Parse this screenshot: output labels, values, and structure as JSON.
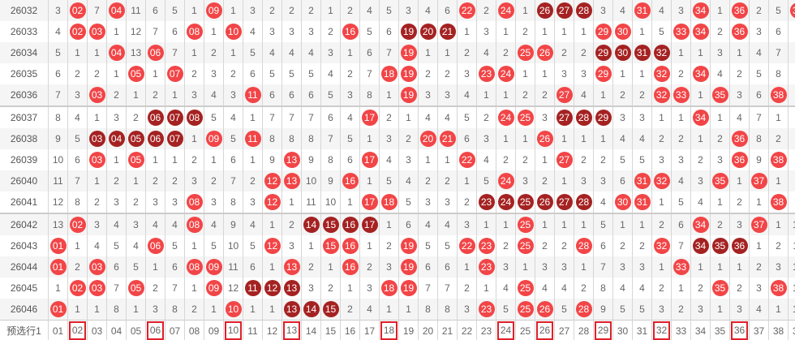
{
  "colors": {
    "hit": "#f24547",
    "consecutive": "#a52222",
    "pick_border": "#e0202a"
  },
  "columns": [
    "01",
    "02",
    "03",
    "04",
    "05",
    "06",
    "07",
    "08",
    "09",
    "10",
    "11",
    "12",
    "13",
    "14",
    "15",
    "16",
    "17",
    "18",
    "19",
    "20",
    "21",
    "22",
    "23",
    "24",
    "25",
    "26",
    "27",
    "28",
    "29",
    "30",
    "31",
    "32",
    "33",
    "34",
    "35",
    "36",
    "37",
    "38",
    "39",
    "40"
  ],
  "rows": [
    {
      "issue": "26032",
      "cells": [
        "3",
        "02",
        "7",
        "04",
        "11",
        "6",
        "5",
        "1",
        "09",
        "1",
        "3",
        "2",
        "2",
        "2",
        "1",
        "2",
        "4",
        "5",
        "3",
        "4",
        "6",
        "22",
        "2",
        "24",
        "1",
        "26",
        "27",
        "28",
        "3",
        "4",
        "31",
        "4",
        "3",
        "34",
        "1",
        "36",
        "2",
        "5",
        "39",
        "7"
      ],
      "hits": [
        2,
        4,
        9,
        22,
        24,
        26,
        27,
        28,
        31,
        34,
        36,
        39
      ],
      "consecutive": [
        26,
        27,
        28
      ]
    },
    {
      "issue": "26033",
      "cells": [
        "4",
        "02",
        "03",
        "1",
        "12",
        "7",
        "6",
        "08",
        "1",
        "10",
        "4",
        "3",
        "3",
        "3",
        "2",
        "16",
        "5",
        "6",
        "19",
        "20",
        "21",
        "1",
        "3",
        "1",
        "2",
        "1",
        "1",
        "1",
        "29",
        "30",
        "1",
        "5",
        "33",
        "34",
        "2",
        "36",
        "3",
        "6",
        "1",
        "8"
      ],
      "hits": [
        2,
        3,
        8,
        10,
        16,
        19,
        20,
        21,
        29,
        30,
        33,
        34,
        36
      ],
      "consecutive": [
        19,
        20,
        21
      ]
    },
    {
      "issue": "26034",
      "cells": [
        "5",
        "1",
        "1",
        "04",
        "13",
        "06",
        "7",
        "1",
        "2",
        "1",
        "5",
        "4",
        "4",
        "4",
        "3",
        "1",
        "6",
        "7",
        "19",
        "1",
        "1",
        "2",
        "4",
        "2",
        "25",
        "26",
        "2",
        "2",
        "29",
        "30",
        "31",
        "32",
        "1",
        "1",
        "3",
        "1",
        "4",
        "7",
        "2",
        "9"
      ],
      "hits": [
        4,
        6,
        19,
        25,
        26,
        29,
        30,
        31,
        32
      ],
      "consecutive": [
        29,
        30,
        31,
        32
      ]
    },
    {
      "issue": "26035",
      "cells": [
        "6",
        "2",
        "2",
        "1",
        "05",
        "1",
        "07",
        "2",
        "3",
        "2",
        "6",
        "5",
        "5",
        "5",
        "4",
        "2",
        "7",
        "18",
        "19",
        "2",
        "2",
        "3",
        "23",
        "24",
        "1",
        "1",
        "3",
        "3",
        "29",
        "1",
        "1",
        "32",
        "2",
        "34",
        "4",
        "2",
        "5",
        "8",
        "3",
        "10"
      ],
      "hits": [
        5,
        7,
        18,
        19,
        23,
        24,
        29,
        32,
        34
      ],
      "consecutive": []
    },
    {
      "issue": "26036",
      "cells": [
        "7",
        "3",
        "03",
        "2",
        "1",
        "2",
        "1",
        "3",
        "4",
        "3",
        "11",
        "6",
        "6",
        "6",
        "5",
        "3",
        "8",
        "1",
        "19",
        "3",
        "3",
        "4",
        "1",
        "1",
        "2",
        "2",
        "27",
        "4",
        "1",
        "2",
        "2",
        "32",
        "33",
        "1",
        "35",
        "3",
        "6",
        "38",
        "4",
        "11"
      ],
      "hits": [
        3,
        11,
        19,
        27,
        32,
        33,
        35,
        38
      ],
      "consecutive": []
    },
    {
      "issue": "26037",
      "cells": [
        "8",
        "4",
        "1",
        "3",
        "2",
        "06",
        "07",
        "08",
        "5",
        "4",
        "1",
        "7",
        "7",
        "7",
        "6",
        "4",
        "17",
        "2",
        "1",
        "4",
        "4",
        "5",
        "2",
        "24",
        "25",
        "3",
        "27",
        "28",
        "29",
        "3",
        "3",
        "1",
        "1",
        "34",
        "1",
        "4",
        "7",
        "1",
        "5",
        "40"
      ],
      "hits": [
        6,
        7,
        8,
        17,
        24,
        25,
        27,
        28,
        29,
        34,
        40
      ],
      "consecutive": [
        6,
        7,
        8,
        27,
        28,
        29
      ]
    },
    {
      "issue": "26038",
      "cells": [
        "9",
        "5",
        "03",
        "04",
        "05",
        "06",
        "07",
        "1",
        "09",
        "5",
        "11",
        "8",
        "8",
        "8",
        "7",
        "5",
        "1",
        "3",
        "2",
        "20",
        "21",
        "6",
        "3",
        "1",
        "1",
        "26",
        "1",
        "1",
        "1",
        "4",
        "4",
        "2",
        "2",
        "1",
        "2",
        "36",
        "8",
        "2",
        "6",
        "1"
      ],
      "hits": [
        3,
        4,
        5,
        6,
        7,
        9,
        11,
        20,
        21,
        26,
        36
      ],
      "consecutive": [
        3,
        4,
        5,
        6,
        7
      ]
    },
    {
      "issue": "26039",
      "cells": [
        "10",
        "6",
        "03",
        "1",
        "05",
        "1",
        "1",
        "2",
        "1",
        "6",
        "1",
        "9",
        "13",
        "9",
        "8",
        "6",
        "17",
        "4",
        "3",
        "1",
        "1",
        "22",
        "4",
        "2",
        "2",
        "1",
        "27",
        "2",
        "2",
        "5",
        "5",
        "3",
        "3",
        "2",
        "3",
        "36",
        "9",
        "38",
        "7",
        "40"
      ],
      "hits": [
        3,
        5,
        13,
        17,
        22,
        27,
        36,
        38,
        40
      ],
      "consecutive": []
    },
    {
      "issue": "26040",
      "cells": [
        "11",
        "7",
        "1",
        "2",
        "1",
        "2",
        "2",
        "3",
        "2",
        "7",
        "2",
        "12",
        "13",
        "10",
        "9",
        "16",
        "1",
        "5",
        "4",
        "2",
        "2",
        "1",
        "5",
        "24",
        "3",
        "2",
        "1",
        "3",
        "3",
        "6",
        "31",
        "32",
        "4",
        "3",
        "35",
        "1",
        "37",
        "1",
        "8",
        "1"
      ],
      "hits": [
        12,
        13,
        16,
        24,
        31,
        32,
        35,
        37
      ],
      "consecutive": []
    },
    {
      "issue": "26041",
      "cells": [
        "12",
        "8",
        "2",
        "3",
        "2",
        "3",
        "3",
        "08",
        "3",
        "8",
        "3",
        "12",
        "1",
        "11",
        "10",
        "1",
        "17",
        "18",
        "5",
        "3",
        "3",
        "2",
        "23",
        "24",
        "25",
        "26",
        "27",
        "28",
        "4",
        "30",
        "31",
        "1",
        "5",
        "4",
        "1",
        "2",
        "1",
        "38",
        "9",
        "2"
      ],
      "hits": [
        8,
        12,
        17,
        18,
        23,
        24,
        25,
        26,
        27,
        28,
        30,
        31,
        38
      ],
      "consecutive": [
        23,
        24,
        25,
        26,
        27,
        28
      ]
    },
    {
      "issue": "26042",
      "cells": [
        "13",
        "02",
        "3",
        "4",
        "3",
        "4",
        "4",
        "08",
        "4",
        "9",
        "4",
        "1",
        "2",
        "14",
        "15",
        "16",
        "17",
        "1",
        "6",
        "4",
        "4",
        "3",
        "1",
        "1",
        "25",
        "1",
        "1",
        "1",
        "5",
        "1",
        "1",
        "2",
        "6",
        "34",
        "2",
        "3",
        "37",
        "1",
        "10",
        "3"
      ],
      "hits": [
        2,
        8,
        14,
        15,
        16,
        17,
        25,
        34,
        37
      ],
      "consecutive": [
        14,
        15,
        16,
        17
      ]
    },
    {
      "issue": "26043",
      "cells": [
        "01",
        "1",
        "4",
        "5",
        "4",
        "06",
        "5",
        "1",
        "5",
        "10",
        "5",
        "12",
        "3",
        "1",
        "15",
        "16",
        "1",
        "2",
        "19",
        "5",
        "5",
        "22",
        "23",
        "2",
        "25",
        "2",
        "2",
        "28",
        "6",
        "2",
        "2",
        "32",
        "7",
        "34",
        "35",
        "36",
        "1",
        "2",
        "11",
        "4"
      ],
      "hits": [
        1,
        6,
        12,
        15,
        16,
        19,
        22,
        23,
        25,
        28,
        32,
        34,
        35,
        36
      ],
      "consecutive": [
        34,
        35,
        36
      ]
    },
    {
      "issue": "26044",
      "cells": [
        "01",
        "2",
        "03",
        "6",
        "5",
        "1",
        "6",
        "08",
        "09",
        "11",
        "6",
        "1",
        "13",
        "2",
        "1",
        "16",
        "2",
        "3",
        "19",
        "6",
        "6",
        "1",
        "23",
        "3",
        "1",
        "3",
        "3",
        "1",
        "7",
        "3",
        "3",
        "1",
        "33",
        "1",
        "1",
        "1",
        "2",
        "3",
        "12",
        "5"
      ],
      "hits": [
        1,
        3,
        8,
        9,
        13,
        16,
        19,
        23,
        33
      ],
      "consecutive": []
    },
    {
      "issue": "26045",
      "cells": [
        "1",
        "02",
        "03",
        "7",
        "05",
        "2",
        "7",
        "1",
        "09",
        "12",
        "11",
        "12",
        "13",
        "3",
        "2",
        "1",
        "3",
        "18",
        "19",
        "7",
        "7",
        "2",
        "1",
        "4",
        "25",
        "4",
        "4",
        "2",
        "8",
        "4",
        "4",
        "2",
        "1",
        "2",
        "35",
        "2",
        "3",
        "38",
        "13",
        "6"
      ],
      "hits": [
        2,
        3,
        5,
        9,
        11,
        12,
        13,
        18,
        19,
        25,
        35,
        38
      ],
      "consecutive": [
        11,
        12,
        13
      ]
    },
    {
      "issue": "26046",
      "cells": [
        "01",
        "1",
        "1",
        "8",
        "1",
        "3",
        "8",
        "2",
        "1",
        "10",
        "1",
        "1",
        "13",
        "14",
        "15",
        "2",
        "4",
        "1",
        "1",
        "8",
        "8",
        "3",
        "23",
        "5",
        "25",
        "26",
        "5",
        "28",
        "9",
        "5",
        "5",
        "3",
        "2",
        "3",
        "1",
        "3",
        "4",
        "1",
        "14",
        "7"
      ],
      "hits": [
        1,
        10,
        13,
        14,
        15,
        23,
        25,
        26,
        28
      ],
      "consecutive": [
        13,
        14,
        15
      ]
    }
  ],
  "group_starts": [
    "26037",
    "26042"
  ],
  "prediction": {
    "label": "预选行1",
    "picked": [
      2,
      6,
      10,
      13,
      18,
      24,
      26,
      29,
      32,
      36
    ]
  }
}
